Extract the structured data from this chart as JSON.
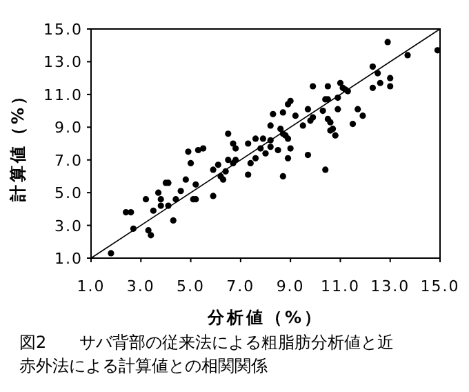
{
  "chart_data": {
    "type": "scatter",
    "title": "図2　　サバ背部の従来法による粗脂肪分析値と近赤外法による計算値との相関関係",
    "xlabel": "分析値（%）",
    "ylabel": "計算値（%）",
    "xlim": [
      1,
      15
    ],
    "ylim": [
      1,
      15
    ],
    "xticks": [
      {
        "value": 1,
        "label": "1.0"
      },
      {
        "value": 3,
        "label": "3.0"
      },
      {
        "value": 5,
        "label": "5.0"
      },
      {
        "value": 7,
        "label": "7.0"
      },
      {
        "value": 9,
        "label": "9.0"
      },
      {
        "value": 11,
        "label": "11.0"
      },
      {
        "value": 13,
        "label": "13.0"
      },
      {
        "value": 15,
        "label": "15.0"
      }
    ],
    "yticks": [
      {
        "value": 1,
        "label": "1.0"
      },
      {
        "value": 3,
        "label": "3.0"
      },
      {
        "value": 5,
        "label": "5.0"
      },
      {
        "value": 7,
        "label": "7.0"
      },
      {
        "value": 9,
        "label": "9.0"
      },
      {
        "value": 11,
        "label": "11.0"
      },
      {
        "value": 13,
        "label": "13.0"
      },
      {
        "value": 15,
        "label": "15.0"
      }
    ],
    "grid": false,
    "marker": "circle",
    "series": [
      {
        "type": "scatter",
        "color": "#000000",
        "x": [
          1.8,
          2.4,
          2.6,
          2.7,
          3.2,
          3.3,
          3.4,
          3.5,
          3.7,
          3.8,
          3.8,
          4.0,
          4.1,
          4.1,
          4.3,
          4.4,
          4.6,
          4.8,
          4.9,
          5.0,
          5.1,
          5.2,
          5.2,
          5.3,
          5.5,
          5.9,
          5.9,
          6.1,
          6.2,
          6.3,
          6.4,
          6.5,
          6.5,
          6.7,
          6.7,
          6.8,
          6.8,
          7.3,
          7.3,
          7.4,
          7.6,
          7.6,
          7.8,
          7.9,
          8.0,
          8.2,
          8.2,
          8.2,
          8.3,
          8.5,
          8.6,
          8.7,
          8.7,
          8.7,
          8.8,
          8.9,
          8.9,
          8.9,
          9.0,
          9.0,
          9.2,
          9.5,
          9.7,
          9.7,
          9.8,
          9.9,
          9.9,
          10.4,
          10.3,
          10.4,
          10.5,
          10.5,
          10.5,
          10.6,
          10.6,
          10.7,
          10.8,
          10.9,
          10.9,
          11.0,
          11.1,
          11.2,
          11.3,
          11.5,
          11.7,
          11.9,
          12.3,
          12.3,
          12.5,
          12.6,
          12.9,
          13.0,
          13.0,
          13.7,
          14.9
        ],
        "values": [
          1.3,
          3.8,
          3.8,
          2.8,
          4.6,
          2.7,
          2.4,
          3.9,
          5.0,
          4.6,
          4.2,
          5.6,
          5.6,
          4.2,
          3.3,
          4.6,
          5.1,
          5.8,
          7.5,
          6.8,
          4.6,
          4.6,
          5.5,
          7.6,
          7.7,
          4.8,
          6.4,
          6.7,
          6.0,
          5.8,
          6.3,
          7.0,
          8.6,
          8.0,
          6.8,
          7.0,
          7.7,
          6.1,
          8.0,
          6.8,
          8.3,
          7.1,
          7.7,
          8.3,
          7.4,
          9.1,
          8.2,
          7.8,
          9.8,
          7.6,
          8.9,
          8.6,
          9.9,
          6.0,
          8.5,
          8.3,
          7.1,
          10.4,
          10.6,
          7.7,
          9.7,
          9.1,
          10.1,
          7.3,
          9.4,
          9.6,
          11.5,
          6.4,
          10.0,
          10.7,
          11.5,
          10.7,
          9.5,
          9.3,
          8.8,
          8.9,
          8.5,
          10.8,
          10.1,
          11.7,
          11.4,
          11.3,
          11.2,
          9.2,
          10.1,
          9.7,
          11.4,
          12.7,
          12.3,
          11.7,
          14.2,
          12.0,
          11.5,
          13.4,
          13.7
        ]
      },
      {
        "type": "line",
        "color": "#000000",
        "x": [
          1,
          15
        ],
        "values": [
          1,
          15
        ],
        "line_style": "solid",
        "marker": "none"
      }
    ]
  }
}
